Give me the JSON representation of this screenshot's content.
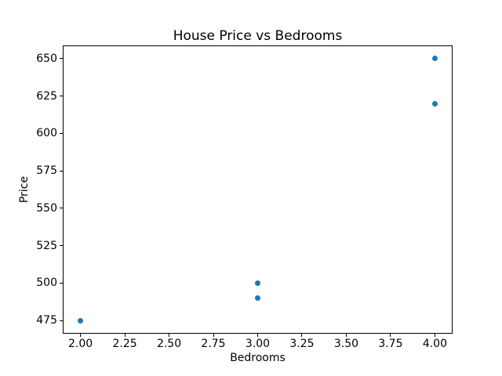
{
  "chart_data": {
    "type": "scatter",
    "title": "House Price vs Bedrooms",
    "xlabel": "Bedrooms",
    "ylabel": "Price",
    "points": [
      {
        "x": 2,
        "y": 475
      },
      {
        "x": 3,
        "y": 490
      },
      {
        "x": 3,
        "y": 500
      },
      {
        "x": 4,
        "y": 620
      },
      {
        "x": 4,
        "y": 650
      }
    ],
    "xlim": [
      1.9,
      4.1
    ],
    "ylim": [
      466.25,
      658.75
    ],
    "x_ticks": [
      {
        "value": 2.0,
        "label": "2.00"
      },
      {
        "value": 2.25,
        "label": "2.25"
      },
      {
        "value": 2.5,
        "label": "2.50"
      },
      {
        "value": 2.75,
        "label": "2.75"
      },
      {
        "value": 3.0,
        "label": "3.00"
      },
      {
        "value": 3.25,
        "label": "3.25"
      },
      {
        "value": 3.5,
        "label": "3.50"
      },
      {
        "value": 3.75,
        "label": "3.75"
      },
      {
        "value": 4.0,
        "label": "4.00"
      }
    ],
    "y_ticks": [
      {
        "value": 475,
        "label": "475"
      },
      {
        "value": 500,
        "label": "500"
      },
      {
        "value": 525,
        "label": "525"
      },
      {
        "value": 550,
        "label": "550"
      },
      {
        "value": 575,
        "label": "575"
      },
      {
        "value": 600,
        "label": "600"
      },
      {
        "value": 625,
        "label": "625"
      },
      {
        "value": 650,
        "label": "650"
      }
    ],
    "marker_color": "#1f77b4",
    "axis_color": "#000000",
    "background_color": "#ffffff",
    "grid": false,
    "legend": null
  }
}
